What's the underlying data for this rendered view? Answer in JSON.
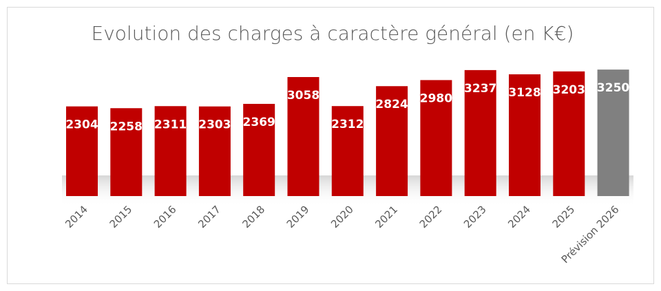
{
  "chart_data": {
    "type": "bar",
    "title": "Evolution des charges à caractère général (en K€)",
    "categories": [
      "2014",
      "2015",
      "2016",
      "2017",
      "2018",
      "2019",
      "2020",
      "2021",
      "2022",
      "2023",
      "2024",
      "2025",
      "Prévision 2026"
    ],
    "values": [
      2304,
      2258,
      2311,
      2303,
      2369,
      3058,
      2312,
      2824,
      2980,
      3237,
      3128,
      3203,
      3250
    ],
    "colors": [
      "#c00000",
      "#c00000",
      "#c00000",
      "#c00000",
      "#c00000",
      "#c00000",
      "#c00000",
      "#c00000",
      "#c00000",
      "#c00000",
      "#c00000",
      "#c00000",
      "#808080"
    ],
    "ylim": [
      0,
      3500
    ]
  }
}
